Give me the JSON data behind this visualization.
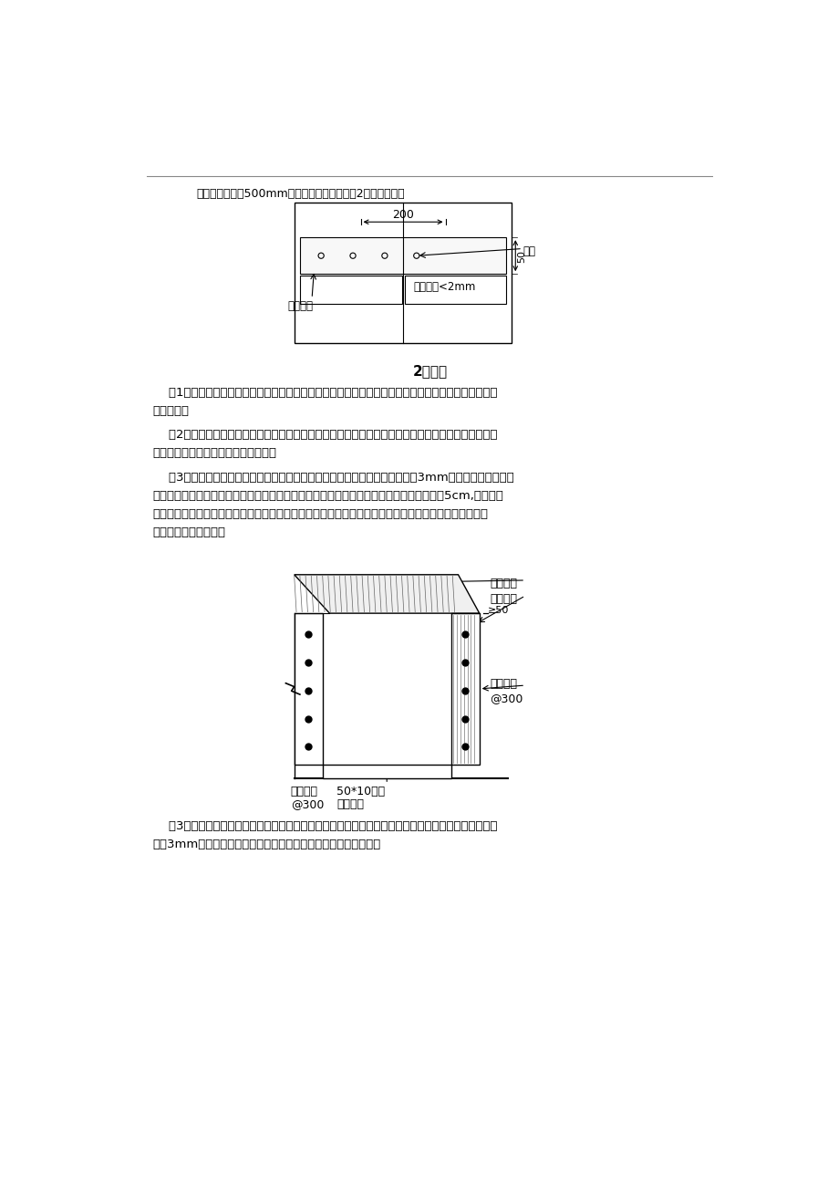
{
  "bg_color": "#ffffff",
  "text_color": "#000000",
  "top_text": "木条间距不大于500mm，且每条缝均不得少于2根，如下图：",
  "section2_title": "2、配模",
  "para1_line1": "    （1）、木方，两个平面必须刨平，高度必须一致。确保模板与木方紧密贴合，使板底标高一致及墙模",
  "para1_line2": "表面平整。",
  "para2_line1": "    （2）、配模时必须弹线切割，切割锯片应选用细齿锯，确保裁边准确、顺直。为确保梁、墙、柱内无",
  "para2_line2": "杂物，模板应先切割、打孔，后安装。",
  "para3_line1": "    （3）、柱、墙模板配制时必须是长边包短边，短边封头模板宜比设计尺寸小3mm，以抵消混凝土浇筑",
  "para3_line2": "过程中微胀模引起的误差。封头模板两边应刨平，确保结合紧密。长边模板宜比封头模板长5cm,安装时封",
  "para3_line3": "头模板两竖向边平钉木方作背楞，长边模板钉在封头模板背楞上，保护封头模板边不被定坏，提高封头模",
  "para3_line4": "板周转次数。如下图：",
  "para4_line1": "    （3）、梁、板模板配制：梁底模配制时应考虑梁侧模夹梁底模，板底模压梁侧模，梁底模宜比设计尺",
  "para4_line2": "寸小3mm，以抵消混凝土浇筑过程中微胀模引起的误差。如下图：",
  "label_200": "200",
  "label_50": "50",
  "label_pinjian_mutiao": "拼缝木条",
  "label_tieding": "铁钉",
  "label_pinjian_width": "拼缝宽度<2mm",
  "label_changbian_mban": "长边模板",
  "label_fengtou_mban": "封头模板",
  "label_ge50": "≥50",
  "label_beileng_qinding": "背楞钱顶",
  "label_beileng_300": "@300",
  "label_pinzhuang_qinding": "拼装钱顶",
  "label_pinzhuang_300": "@300",
  "label_5010_mufang": "50*10木方",
  "label_fengtou_beileng": "封头背楞"
}
